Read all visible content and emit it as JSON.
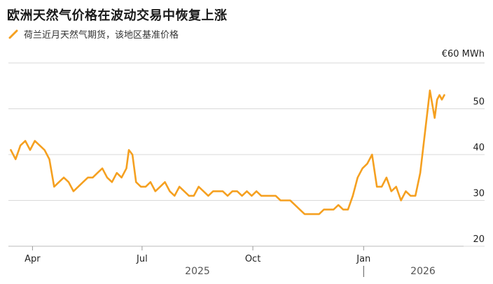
{
  "chart_data": {
    "type": "line",
    "title": "欧洲天然气价格在波动交易中恢复上涨",
    "series": [
      {
        "name": "荷兰近月天然气期货，该地区基准价格",
        "color": "#f5a020",
        "x": [
          "2025-03-14",
          "2025-03-18",
          "2025-03-22",
          "2025-03-26",
          "2025-03-30",
          "2025-04-03",
          "2025-04-07",
          "2025-04-11",
          "2025-04-15",
          "2025-04-19",
          "2025-04-23",
          "2025-04-27",
          "2025-05-01",
          "2025-05-05",
          "2025-05-09",
          "2025-05-13",
          "2025-05-17",
          "2025-05-21",
          "2025-05-25",
          "2025-05-29",
          "2025-06-02",
          "2025-06-06",
          "2025-06-10",
          "2025-06-14",
          "2025-06-18",
          "2025-06-20",
          "2025-06-23",
          "2025-06-26",
          "2025-06-30",
          "2025-07-04",
          "2025-07-08",
          "2025-07-12",
          "2025-07-16",
          "2025-07-20",
          "2025-07-24",
          "2025-07-28",
          "2025-08-01",
          "2025-08-05",
          "2025-08-09",
          "2025-08-13",
          "2025-08-17",
          "2025-08-21",
          "2025-08-25",
          "2025-08-29",
          "2025-09-02",
          "2025-09-06",
          "2025-09-10",
          "2025-09-14",
          "2025-09-18",
          "2025-09-22",
          "2025-09-26",
          "2025-09-30",
          "2025-10-04",
          "2025-10-08",
          "2025-10-12",
          "2025-10-16",
          "2025-10-20",
          "2025-10-24",
          "2025-10-28",
          "2025-11-01",
          "2025-11-05",
          "2025-11-09",
          "2025-11-13",
          "2025-11-17",
          "2025-11-21",
          "2025-11-25",
          "2025-11-29",
          "2025-12-03",
          "2025-12-07",
          "2025-12-11",
          "2025-12-15",
          "2025-12-19",
          "2025-12-23",
          "2025-12-27",
          "2025-12-31",
          "2026-01-04",
          "2026-01-08",
          "2026-01-12",
          "2026-01-16",
          "2026-01-20",
          "2026-01-24",
          "2026-01-28",
          "2026-02-01",
          "2026-02-05",
          "2026-02-09",
          "2026-02-13",
          "2026-02-17",
          "2026-02-21",
          "2026-02-25",
          "2026-03-01",
          "2026-03-03",
          "2026-03-05",
          "2026-03-07",
          "2026-03-09"
        ],
        "values": [
          41,
          39,
          42,
          43,
          41,
          43,
          42,
          41,
          39,
          33,
          34,
          35,
          34,
          32,
          33,
          34,
          35,
          35,
          36,
          37,
          35,
          34,
          36,
          35,
          37,
          41,
          40,
          34,
          33,
          33,
          34,
          32,
          33,
          34,
          32,
          31,
          33,
          32,
          31,
          31,
          33,
          32,
          31,
          32,
          32,
          32,
          31,
          32,
          32,
          31,
          32,
          31,
          32,
          31,
          31,
          31,
          31,
          30,
          30,
          30,
          29,
          28,
          27,
          27,
          27,
          27,
          28,
          28,
          28,
          29,
          28,
          28,
          31,
          35,
          37,
          38,
          40,
          33,
          33,
          35,
          32,
          33,
          30,
          32,
          31,
          31,
          36,
          45,
          54,
          48,
          52,
          53,
          52,
          53
        ]
      }
    ],
    "x_ticks": [
      "Apr",
      "Jul",
      "Oct",
      "Jan"
    ],
    "years": [
      "2025",
      "2026"
    ],
    "y_ticks": [
      20,
      30,
      40,
      50
    ],
    "ylim": [
      20,
      60
    ],
    "unit": "€60 MWh",
    "grid": true,
    "legend": "top-left"
  }
}
